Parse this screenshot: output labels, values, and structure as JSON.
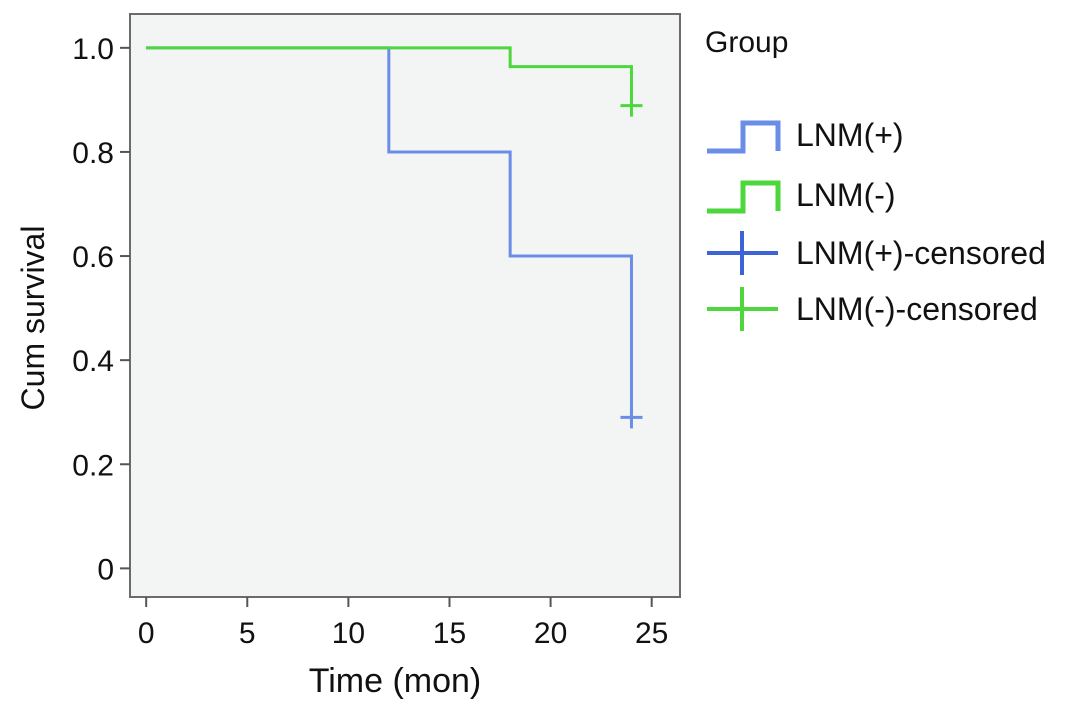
{
  "chart_data": {
    "type": "line",
    "subtype": "kaplan-meier-step",
    "title": "",
    "xlabel": "Time (mon)",
    "ylabel": "Cum survival",
    "xlim": [
      -0.8,
      26.4
    ],
    "ylim": [
      -0.055,
      1.065
    ],
    "x_ticks": [
      0,
      5,
      10,
      15,
      20,
      25
    ],
    "x_tick_labels": [
      "0",
      "5",
      "10",
      "15",
      "20",
      "25"
    ],
    "y_ticks": [
      0,
      0.2,
      0.4,
      0.6,
      0.8,
      1.0
    ],
    "y_tick_labels": [
      "0",
      "0.2",
      "0.4",
      "0.6",
      "0.8",
      "1.0"
    ],
    "grid": false,
    "plot_background": "#f3f5f4",
    "legend": {
      "title": "Group",
      "position": "right",
      "entries": [
        {
          "label": "LNM(+)",
          "kind": "step",
          "color": "#6a8ee8"
        },
        {
          "label": "LNM(-)",
          "kind": "step",
          "color": "#4ed63d"
        },
        {
          "label": "LNM(+)-censored",
          "kind": "censor",
          "color": "#3e63d6"
        },
        {
          "label": "LNM(-)-censored",
          "kind": "censor",
          "color": "#4ed63d"
        }
      ]
    },
    "series": [
      {
        "name": "LNM(+)",
        "color": "#6a8ee8",
        "steps": [
          [
            0,
            1.0
          ],
          [
            12,
            0.8
          ],
          [
            18,
            0.6
          ],
          [
            24,
            0.29
          ]
        ],
        "censored": [
          [
            24,
            0.29
          ]
        ]
      },
      {
        "name": "LNM(-)",
        "color": "#4ed63d",
        "steps": [
          [
            0,
            1.0
          ],
          [
            18,
            0.964
          ],
          [
            24,
            0.889
          ]
        ],
        "censored": [
          [
            24,
            0.889
          ]
        ]
      }
    ]
  }
}
